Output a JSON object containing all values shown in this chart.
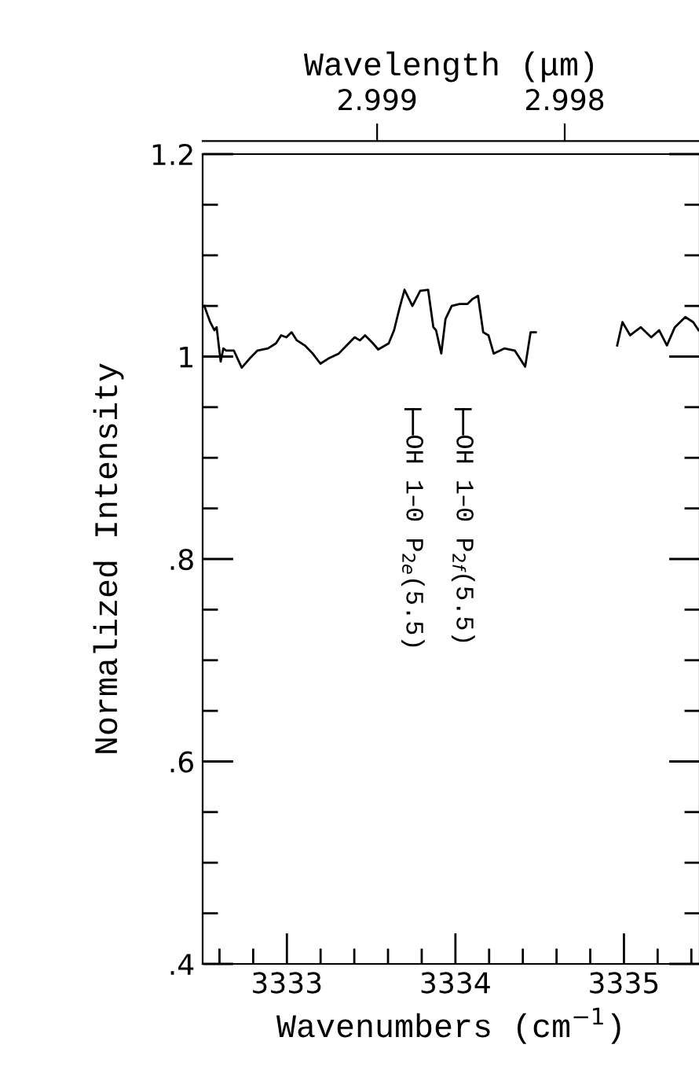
{
  "chart_data": {
    "type": "line",
    "xlabel": "Wavenumbers (cm$^{−1}$)",
    "ylabel": "Normalized Intensity",
    "x2label": "Wavelength (μm)",
    "xlim": [
      3332.5,
      3335.45
    ],
    "ylim": [
      0.4,
      1.2
    ],
    "x2lim": [
      2.99993,
      2.99728
    ],
    "x2ticks": [
      2.999,
      2.998
    ],
    "xticks": [
      {
        "value": 3332.6,
        "label": null
      },
      {
        "value": 3332.8,
        "label": null
      },
      3333,
      {
        "value": 3333.2,
        "label": null
      },
      {
        "value": 3333.4,
        "label": null
      },
      {
        "value": 3333.6,
        "label": null
      },
      {
        "value": 3333.8,
        "label": null
      },
      3334,
      {
        "value": 3334.2,
        "label": null
      },
      {
        "value": 3334.4,
        "label": null
      },
      {
        "value": 3334.6,
        "label": null
      },
      {
        "value": 3334.8,
        "label": null
      },
      3335,
      {
        "value": 3335.2,
        "label": null
      },
      {
        "value": 3335.4,
        "label": null
      }
    ],
    "yticks": [
      {
        "value": 0.4,
        "label": ".4"
      },
      {
        "value": 0.45,
        "label": null
      },
      {
        "value": 0.5,
        "label": null
      },
      {
        "value": 0.55,
        "label": null
      },
      {
        "value": 0.6,
        "label": ".6"
      },
      {
        "value": 0.65,
        "label": null
      },
      {
        "value": 0.7,
        "label": null
      },
      {
        "value": 0.75,
        "label": null
      },
      {
        "value": 0.8,
        "label": ".8"
      },
      {
        "value": 0.85,
        "label": null
      },
      {
        "value": 0.9,
        "label": null
      },
      {
        "value": 0.95,
        "label": null
      },
      1,
      {
        "value": 1.05,
        "label": null
      },
      {
        "value": 1.1,
        "label": null
      },
      {
        "value": 1.15,
        "label": null
      },
      1.2
    ],
    "grid": false,
    "legend": false,
    "series": [
      {
        "color": "#000000",
        "x": [
          3332.51,
          3332.545,
          3332.57,
          3332.583,
          3332.607,
          3332.623,
          3332.639,
          3332.685,
          3332.732,
          3332.779,
          3332.826,
          3332.888,
          3332.935,
          3332.966,
          3332.997,
          3333.028,
          3333.059,
          3333.106,
          3333.153,
          3333.199,
          3333.246,
          3333.308,
          3333.355,
          3333.402,
          3333.433,
          3333.464,
          3333.511,
          3333.542,
          3333.604,
          3333.636,
          3333.667,
          3333.698,
          3333.745,
          3333.791,
          3333.838,
          3333.869,
          3333.885,
          3333.916,
          3333.941,
          3333.978,
          3334.025,
          3334.072,
          3334.103,
          3334.134,
          3334.165,
          3334.196,
          3334.227,
          3334.29,
          3334.352,
          3334.414,
          3334.446,
          3334.477,
          3334.7,
          3334.96,
          3334.991,
          3335.037,
          3335.1,
          3335.162,
          3335.209,
          3335.255,
          3335.302,
          3335.364,
          3335.411,
          3335.443
        ],
        "values": [
          1.05,
          1.034,
          1.026,
          1.029,
          0.995,
          1.008,
          1.006,
          1.006,
          0.989,
          0.998,
          1.006,
          1.008,
          1.013,
          1.021,
          1.019,
          1.024,
          1.016,
          1.011,
          1.003,
          0.993,
          0.998,
          1.003,
          1.011,
          1.019,
          1.016,
          1.021,
          1.013,
          1.007,
          1.013,
          1.026,
          1.047,
          1.066,
          1.05,
          1.065,
          1.066,
          1.029,
          1.026,
          1.003,
          1.037,
          1.05,
          1.052,
          1.052,
          1.057,
          1.06,
          1.024,
          1.021,
          1.003,
          1.008,
          1.006,
          0.99,
          1.024,
          1.024,
          null,
          1.011,
          1.034,
          1.021,
          1.029,
          1.019,
          1.026,
          1.011,
          1.029,
          1.039,
          1.034,
          1.026
        ]
      }
    ],
    "annotations": [
      "OH 1–0 P$_{2e}$(5.5)",
      "OH 1–0 P$_{2f}$(5.5)"
    ]
  }
}
